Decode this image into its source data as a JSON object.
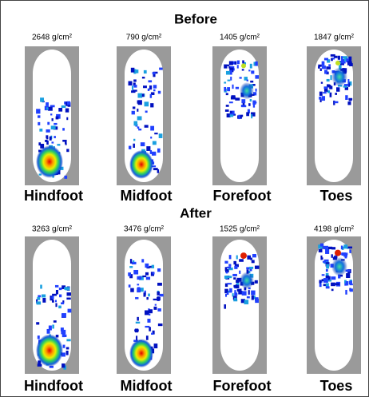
{
  "sections": [
    {
      "title": "Before",
      "panels": [
        {
          "pressure": "2648 g/cm²",
          "region": "Hindfoot"
        },
        {
          "pressure": "790 g/cm²",
          "region": "Midfoot"
        },
        {
          "pressure": "1405 g/cm²",
          "region": "Forefoot"
        },
        {
          "pressure": "1847 g/cm²",
          "region": "Toes"
        }
      ]
    },
    {
      "title": "After",
      "panels": [
        {
          "pressure": "3263 g/cm²",
          "region": "Hindfoot"
        },
        {
          "pressure": "3476 g/cm²",
          "region": "Midfoot"
        },
        {
          "pressure": "1525 g/cm²",
          "region": "Forefoot"
        },
        {
          "pressure": "4198 g/cm²",
          "region": "Toes"
        }
      ]
    }
  ]
}
